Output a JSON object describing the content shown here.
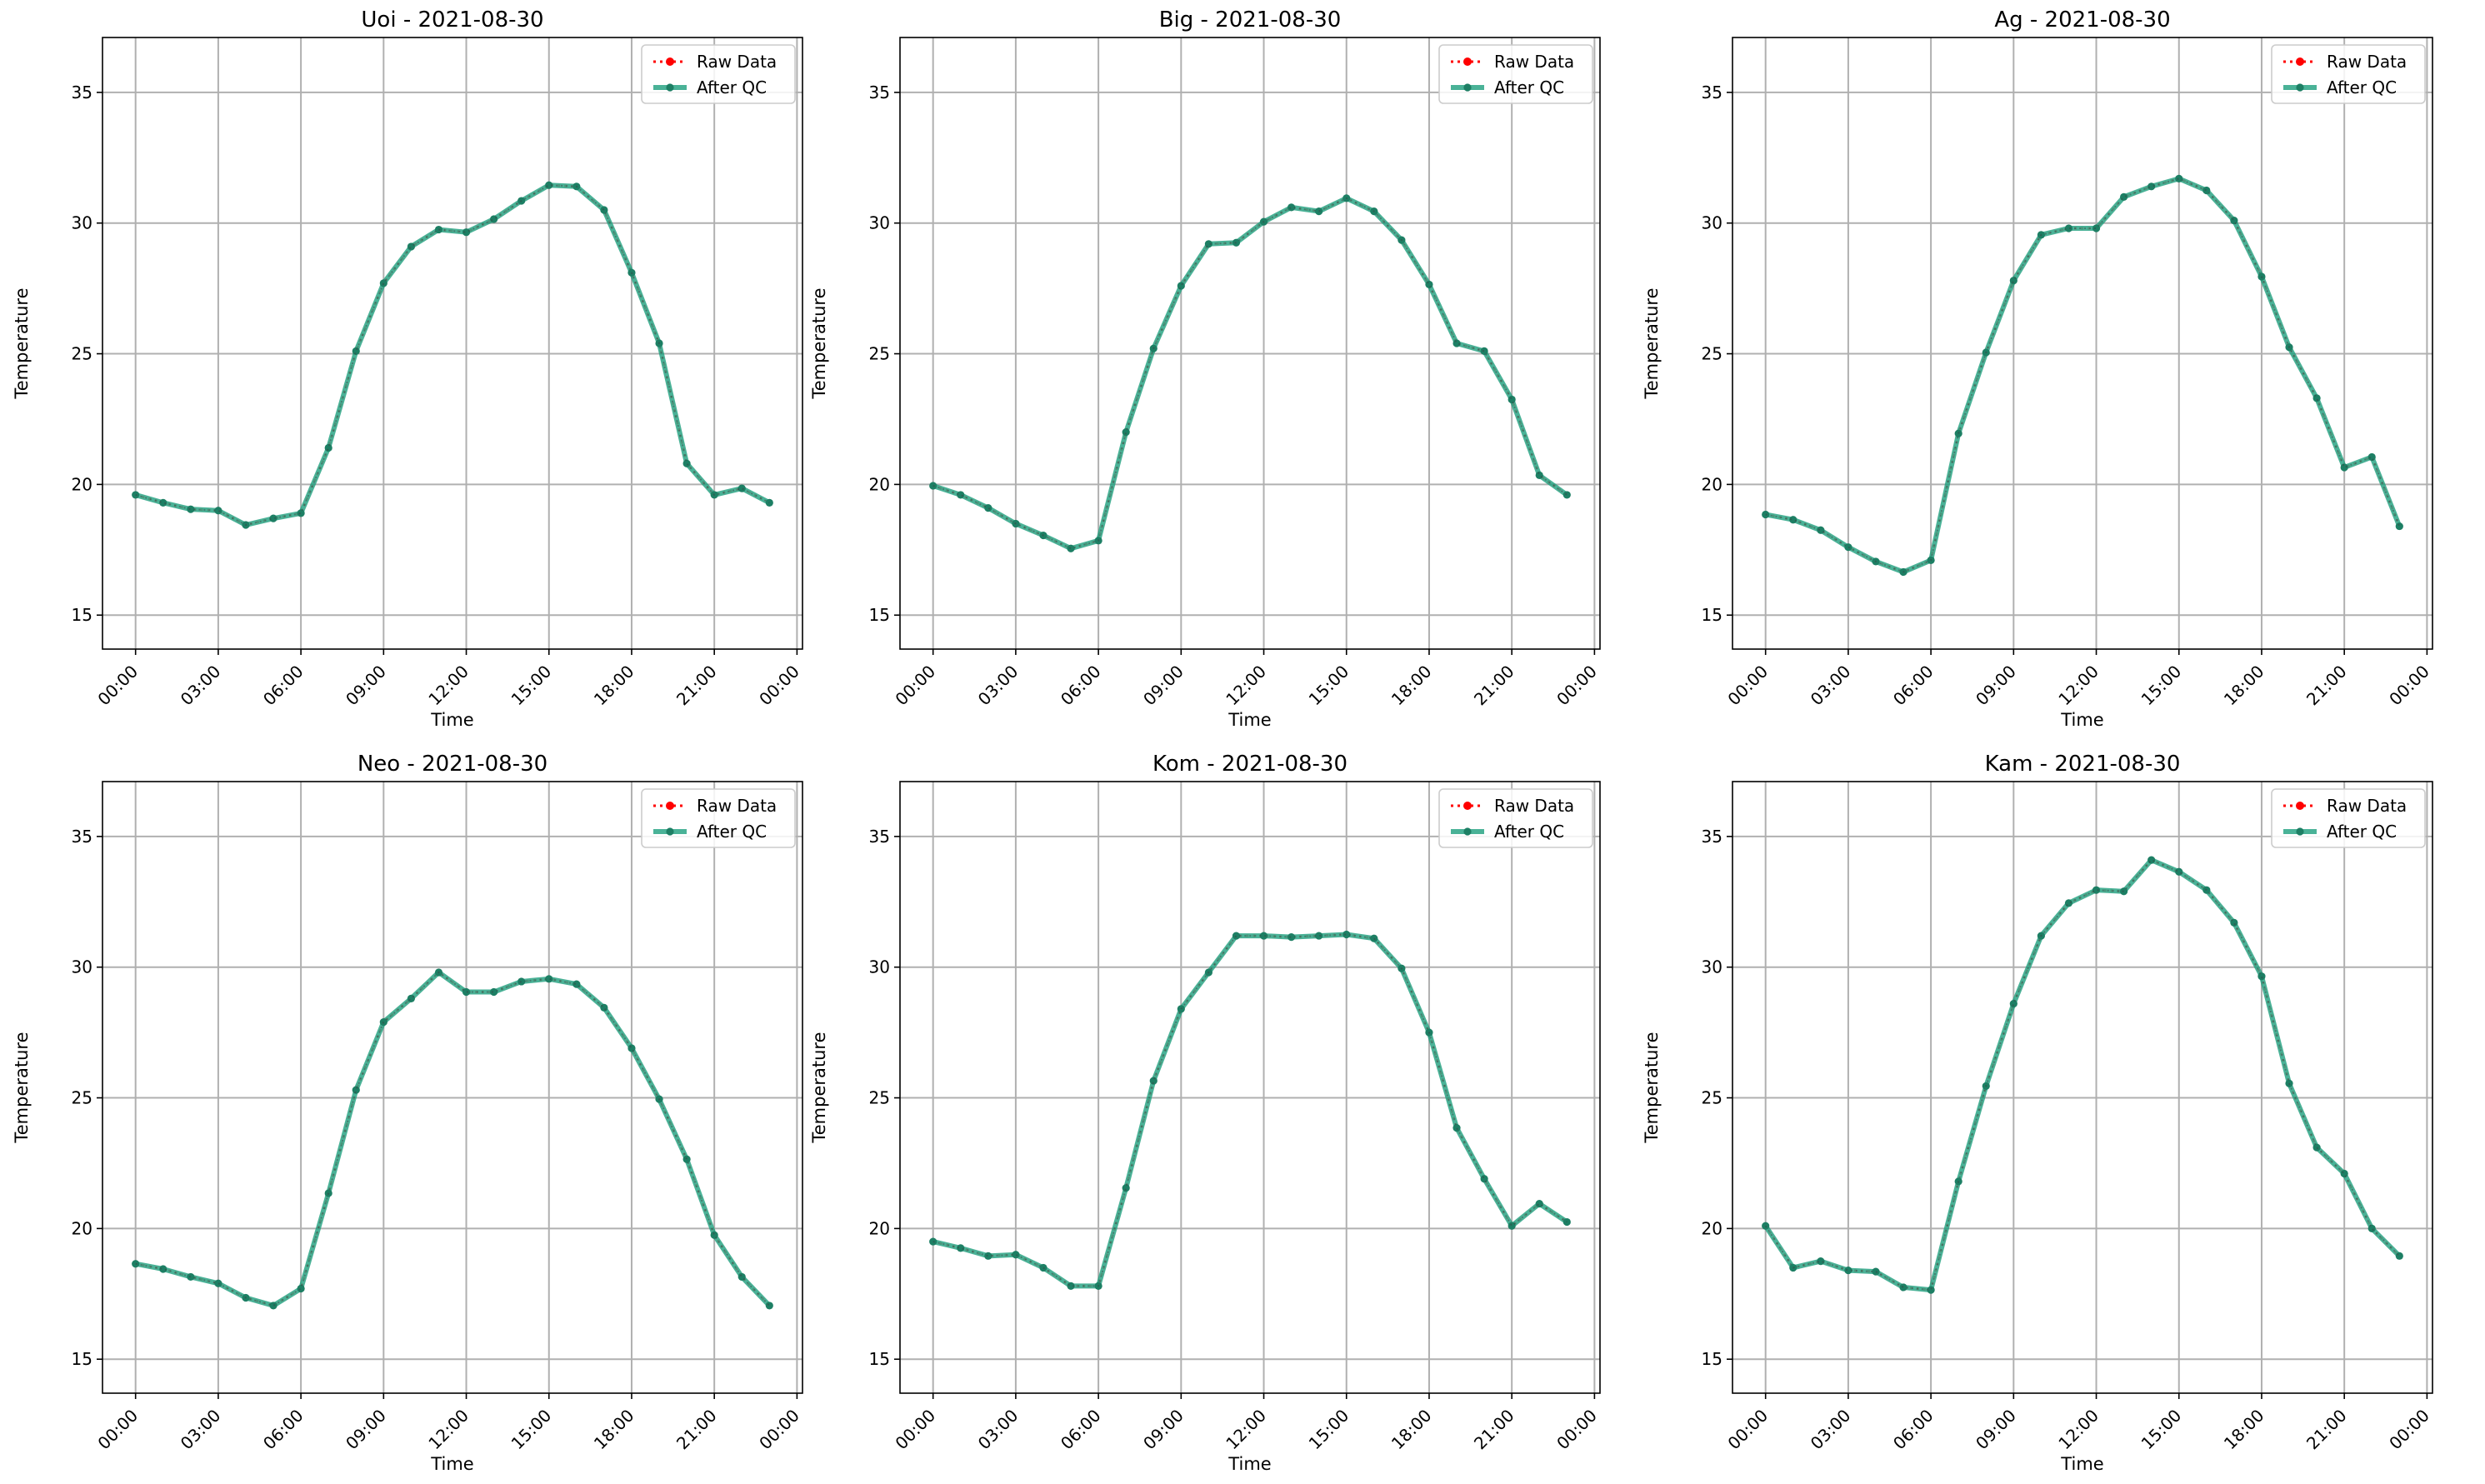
{
  "chart_data": [
    {
      "type": "line",
      "title": "Uoi - 2021-08-30",
      "xlabel": "Time",
      "ylabel": "Temperature",
      "xlim": [
        -1.2,
        24.2
      ],
      "ylim": [
        13.7,
        37.1
      ],
      "xticks": [
        0,
        3,
        6,
        9,
        12,
        15,
        18,
        21,
        24
      ],
      "xtick_labels": [
        "00:00",
        "03:00",
        "06:00",
        "09:00",
        "12:00",
        "15:00",
        "18:00",
        "21:00",
        "00:00"
      ],
      "yticks": [
        15,
        20,
        25,
        30,
        35
      ],
      "grid": true,
      "legend_position": "upper right",
      "x": [
        0,
        1,
        2,
        3,
        4,
        5,
        6,
        7,
        8,
        9,
        10,
        11,
        12,
        13,
        14,
        15,
        16,
        17,
        18,
        19,
        20,
        21,
        22,
        23
      ],
      "series": [
        {
          "name": "Raw Data",
          "color": "#ff0000",
          "style": "dotted",
          "values": [
            19.6,
            19.3,
            19.05,
            19.0,
            18.45,
            18.7,
            18.9,
            21.4,
            25.1,
            27.7,
            29.1,
            29.75,
            29.65,
            30.15,
            30.85,
            31.45,
            31.4,
            30.5,
            28.1,
            25.4,
            20.8,
            19.6,
            19.85,
            19.3
          ]
        },
        {
          "name": "After QC",
          "color": "#1d9f7d",
          "style": "solid",
          "values": [
            19.6,
            19.3,
            19.05,
            19.0,
            18.45,
            18.7,
            18.9,
            21.4,
            25.1,
            27.7,
            29.1,
            29.75,
            29.65,
            30.15,
            30.85,
            31.45,
            31.4,
            30.5,
            28.1,
            25.4,
            20.8,
            19.6,
            19.85,
            19.3
          ]
        }
      ]
    },
    {
      "type": "line",
      "title": "Big - 2021-08-30",
      "xlabel": "Time",
      "ylabel": "Temperature",
      "xlim": [
        -1.2,
        24.2
      ],
      "ylim": [
        13.7,
        37.1
      ],
      "xticks": [
        0,
        3,
        6,
        9,
        12,
        15,
        18,
        21,
        24
      ],
      "xtick_labels": [
        "00:00",
        "03:00",
        "06:00",
        "09:00",
        "12:00",
        "15:00",
        "18:00",
        "21:00",
        "00:00"
      ],
      "yticks": [
        15,
        20,
        25,
        30,
        35
      ],
      "grid": true,
      "legend_position": "upper right",
      "x": [
        0,
        1,
        2,
        3,
        4,
        5,
        6,
        7,
        8,
        9,
        10,
        11,
        12,
        13,
        14,
        15,
        16,
        17,
        18,
        19,
        20,
        21,
        22,
        23
      ],
      "series": [
        {
          "name": "Raw Data",
          "color": "#ff0000",
          "style": "dotted",
          "values": [
            19.95,
            19.6,
            19.1,
            18.5,
            18.05,
            17.55,
            17.85,
            22.0,
            25.2,
            27.6,
            29.2,
            29.25,
            30.05,
            30.6,
            30.45,
            30.95,
            30.45,
            29.35,
            27.65,
            25.4,
            25.1,
            23.25,
            20.35,
            19.6
          ]
        },
        {
          "name": "After QC",
          "color": "#1d9f7d",
          "style": "solid",
          "values": [
            19.95,
            19.6,
            19.1,
            18.5,
            18.05,
            17.55,
            17.85,
            22.0,
            25.2,
            27.6,
            29.2,
            29.25,
            30.05,
            30.6,
            30.45,
            30.95,
            30.45,
            29.35,
            27.65,
            25.4,
            25.1,
            23.25,
            20.35,
            19.6
          ]
        }
      ]
    },
    {
      "type": "line",
      "title": "Ag - 2021-08-30",
      "xlabel": "Time",
      "ylabel": "Temperature",
      "xlim": [
        -1.2,
        24.2
      ],
      "ylim": [
        13.7,
        37.1
      ],
      "xticks": [
        0,
        3,
        6,
        9,
        12,
        15,
        18,
        21,
        24
      ],
      "xtick_labels": [
        "00:00",
        "03:00",
        "06:00",
        "09:00",
        "12:00",
        "15:00",
        "18:00",
        "21:00",
        "00:00"
      ],
      "yticks": [
        15,
        20,
        25,
        30,
        35
      ],
      "grid": true,
      "legend_position": "upper right",
      "x": [
        0,
        1,
        2,
        3,
        4,
        5,
        6,
        7,
        8,
        9,
        10,
        11,
        12,
        13,
        14,
        15,
        16,
        17,
        18,
        19,
        20,
        21,
        22,
        23
      ],
      "series": [
        {
          "name": "Raw Data",
          "color": "#ff0000",
          "style": "dotted",
          "values": [
            18.85,
            18.65,
            18.25,
            17.6,
            17.05,
            16.65,
            17.1,
            21.95,
            25.05,
            27.8,
            29.55,
            29.8,
            29.8,
            31.0,
            31.4,
            31.7,
            31.25,
            30.1,
            27.95,
            25.25,
            23.3,
            20.65,
            21.05,
            18.4
          ]
        },
        {
          "name": "After QC",
          "color": "#1d9f7d",
          "style": "solid",
          "values": [
            18.85,
            18.65,
            18.25,
            17.6,
            17.05,
            16.65,
            17.1,
            21.95,
            25.05,
            27.8,
            29.55,
            29.8,
            29.8,
            31.0,
            31.4,
            31.7,
            31.25,
            30.1,
            27.95,
            25.25,
            23.3,
            20.65,
            21.05,
            18.4
          ]
        }
      ]
    },
    {
      "type": "line",
      "title": "Neo - 2021-08-30",
      "xlabel": "Time",
      "ylabel": "Temperature",
      "xlim": [
        -1.2,
        24.2
      ],
      "ylim": [
        13.7,
        37.1
      ],
      "xticks": [
        0,
        3,
        6,
        9,
        12,
        15,
        18,
        21,
        24
      ],
      "xtick_labels": [
        "00:00",
        "03:00",
        "06:00",
        "09:00",
        "12:00",
        "15:00",
        "18:00",
        "21:00",
        "00:00"
      ],
      "yticks": [
        15,
        20,
        25,
        30,
        35
      ],
      "grid": true,
      "legend_position": "upper right",
      "x": [
        0,
        1,
        2,
        3,
        4,
        5,
        6,
        7,
        8,
        9,
        10,
        11,
        12,
        13,
        14,
        15,
        16,
        17,
        18,
        19,
        20,
        21,
        22,
        23
      ],
      "series": [
        {
          "name": "Raw Data",
          "color": "#ff0000",
          "style": "dotted",
          "values": [
            18.65,
            18.45,
            18.15,
            17.9,
            17.35,
            17.05,
            17.7,
            21.35,
            25.3,
            27.9,
            28.8,
            29.8,
            29.05,
            29.05,
            29.45,
            29.55,
            29.35,
            28.45,
            26.9,
            24.95,
            22.65,
            19.75,
            18.15,
            17.05
          ]
        },
        {
          "name": "After QC",
          "color": "#1d9f7d",
          "style": "solid",
          "values": [
            18.65,
            18.45,
            18.15,
            17.9,
            17.35,
            17.05,
            17.7,
            21.35,
            25.3,
            27.9,
            28.8,
            29.8,
            29.05,
            29.05,
            29.45,
            29.55,
            29.35,
            28.45,
            26.9,
            24.95,
            22.65,
            19.75,
            18.15,
            17.05
          ]
        }
      ]
    },
    {
      "type": "line",
      "title": "Kom - 2021-08-30",
      "xlabel": "Time",
      "ylabel": "Temperature",
      "xlim": [
        -1.2,
        24.2
      ],
      "ylim": [
        13.7,
        37.1
      ],
      "xticks": [
        0,
        3,
        6,
        9,
        12,
        15,
        18,
        21,
        24
      ],
      "xtick_labels": [
        "00:00",
        "03:00",
        "06:00",
        "09:00",
        "12:00",
        "15:00",
        "18:00",
        "21:00",
        "00:00"
      ],
      "yticks": [
        15,
        20,
        25,
        30,
        35
      ],
      "grid": true,
      "legend_position": "upper right",
      "x": [
        0,
        1,
        2,
        3,
        4,
        5,
        6,
        7,
        8,
        9,
        10,
        11,
        12,
        13,
        14,
        15,
        16,
        17,
        18,
        19,
        20,
        21,
        22,
        23
      ],
      "series": [
        {
          "name": "Raw Data",
          "color": "#ff0000",
          "style": "dotted",
          "values": [
            19.5,
            19.25,
            18.95,
            19.0,
            18.5,
            17.8,
            17.8,
            21.55,
            25.65,
            28.4,
            29.8,
            31.2,
            31.2,
            31.15,
            31.2,
            31.25,
            31.1,
            29.95,
            27.5,
            23.85,
            21.9,
            20.1,
            20.95,
            20.25
          ]
        },
        {
          "name": "After QC",
          "color": "#1d9f7d",
          "style": "solid",
          "values": [
            19.5,
            19.25,
            18.95,
            19.0,
            18.5,
            17.8,
            17.8,
            21.55,
            25.65,
            28.4,
            29.8,
            31.2,
            31.2,
            31.15,
            31.2,
            31.25,
            31.1,
            29.95,
            27.5,
            23.85,
            21.9,
            20.1,
            20.95,
            20.25
          ]
        }
      ]
    },
    {
      "type": "line",
      "title": "Kam - 2021-08-30",
      "xlabel": "Time",
      "ylabel": "Temperature",
      "xlim": [
        -1.2,
        24.2
      ],
      "ylim": [
        13.7,
        37.1
      ],
      "xticks": [
        0,
        3,
        6,
        9,
        12,
        15,
        18,
        21,
        24
      ],
      "xtick_labels": [
        "00:00",
        "03:00",
        "06:00",
        "09:00",
        "12:00",
        "15:00",
        "18:00",
        "21:00",
        "00:00"
      ],
      "yticks": [
        15,
        20,
        25,
        30,
        35
      ],
      "grid": true,
      "legend_position": "upper right",
      "x": [
        0,
        1,
        2,
        3,
        4,
        5,
        6,
        7,
        8,
        9,
        10,
        11,
        12,
        13,
        14,
        15,
        16,
        17,
        18,
        19,
        20,
        21,
        22,
        23
      ],
      "series": [
        {
          "name": "Raw Data",
          "color": "#ff0000",
          "style": "dotted",
          "values": [
            20.1,
            18.5,
            18.75,
            18.4,
            18.35,
            17.75,
            17.65,
            21.8,
            25.45,
            28.6,
            31.2,
            32.45,
            32.95,
            32.9,
            34.1,
            33.65,
            32.95,
            31.7,
            29.65,
            25.55,
            23.1,
            22.1,
            20.0,
            18.95
          ]
        },
        {
          "name": "After QC",
          "color": "#1d9f7d",
          "style": "solid",
          "values": [
            20.1,
            18.5,
            18.75,
            18.4,
            18.35,
            17.75,
            17.65,
            21.8,
            25.45,
            28.6,
            31.2,
            32.45,
            32.95,
            32.9,
            34.1,
            33.65,
            32.95,
            31.7,
            29.65,
            25.55,
            23.1,
            22.1,
            20.0,
            18.95
          ]
        }
      ]
    }
  ]
}
